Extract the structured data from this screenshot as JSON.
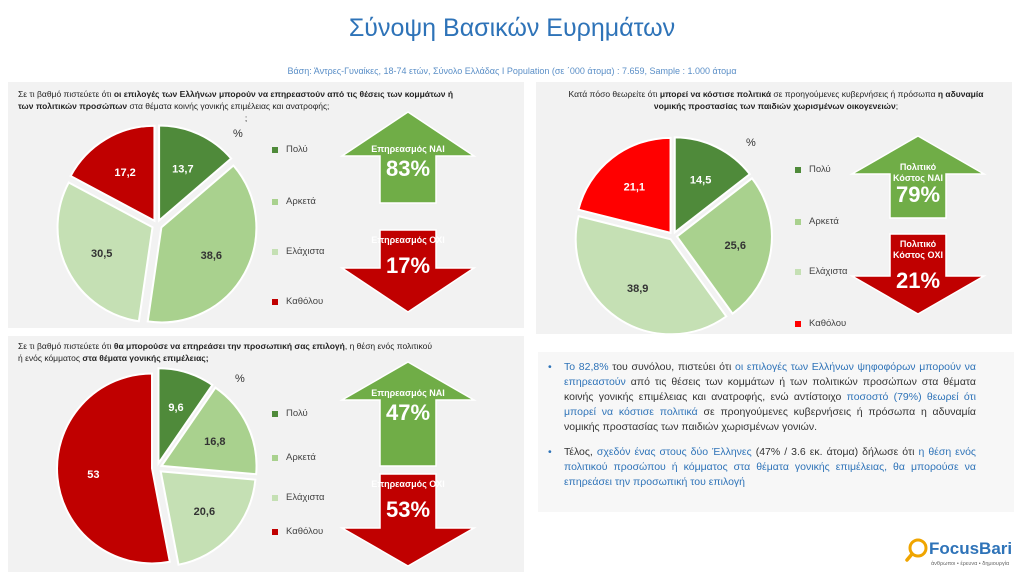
{
  "page": {
    "title": "Σύνοψη Βασικών Ευρημάτων",
    "subtitle": "Βάση: Άντρες-Γυναίκες, 18-74 ετών, Σύνολο Ελλάδας I Population (σε ΄000 άτομα) : 7.659, Sample : 1.000 άτομα"
  },
  "colors": {
    "polu": "#4f8a3a",
    "arketa": "#a9d18e",
    "elaxista": "#c5e0b4",
    "katholou": "#c00000",
    "red2": "#ff0000",
    "green_arrow": "#70ad47",
    "red_arrow": "#c00000",
    "blue": "#2e73b8"
  },
  "panel1": {
    "question_pre": "Σε τι βαθμό πιστεύετε ότι ",
    "question_bold": "οι επιλογές των Ελλήνων μπορούν να επηρεαστούν από τις θέσεις των κομμάτων ή των πολιτικών προσώπων",
    "question_post": " στα θέματα κοινής γονικής επιμέλειας και ανατροφής;",
    "question_tail": ";",
    "percent_sign": "%",
    "legend": [
      "Πολύ",
      "Αρκετά",
      "Ελάχιστα",
      "Καθόλου"
    ],
    "chart_data": {
      "type": "pie",
      "categories": [
        "Πολύ",
        "Αρκετά",
        "Ελάχιστα",
        "Καθόλου"
      ],
      "values": [
        13.7,
        38.6,
        30.5,
        17.2
      ],
      "labels": [
        "13,7",
        "38,6",
        "30,5",
        "17,2"
      ]
    },
    "arrow_up": {
      "label": "Επηρεασμός ΝΑΙ",
      "value": "83%"
    },
    "arrow_down": {
      "label": "Επηρεασμός ΟΧΙ",
      "value": "17%"
    }
  },
  "panel2": {
    "question_pre": "Κατά πόσο θεωρείτε ότι ",
    "question_bold1": "μπορεί να κόστισε πολιτικά",
    "question_mid": " σε προηγούμενες κυβερνήσεις ή πρόσωπα ",
    "question_bold2": "η αδυναμία νομικής προστασίας των παιδιών χωρισμένων οικογενειών",
    "question_post": ";",
    "percent_sign": "%",
    "legend": [
      "Πολύ",
      "Αρκετά",
      "Ελάχιστα",
      "Καθόλου"
    ],
    "chart_data": {
      "type": "pie",
      "categories": [
        "Πολύ",
        "Αρκετά",
        "Ελάχιστα",
        "Καθόλου"
      ],
      "values": [
        14.5,
        25.6,
        38.9,
        21.1
      ],
      "labels": [
        "14,5",
        "25,6",
        "38,9",
        "21,1"
      ]
    },
    "arrow_up": {
      "label": "Πολιτικό Κόστος ΝΑΙ",
      "value": "79%"
    },
    "arrow_down": {
      "label": "Πολιτικό Κόστος ΟΧΙ",
      "value": "21%"
    }
  },
  "panel3": {
    "question_pre": "Σε τι βαθμό πιστεύετε ότι ",
    "question_bold1": "θα μπορούσε να επηρεάσει την προσωπική σας επιλογή",
    "question_mid": ", η θέση ενός πολιτικού ή ενός κόμματος ",
    "question_bold2": "στα θέματα γονικής επιμέλειας;",
    "percent_sign": "%",
    "legend": [
      "Πολύ",
      "Αρκετά",
      "Ελάχιστα",
      "Καθόλου"
    ],
    "chart_data": {
      "type": "pie",
      "categories": [
        "Πολύ",
        "Αρκετά",
        "Ελάχιστα",
        "Καθόλου"
      ],
      "values": [
        9.6,
        16.8,
        20.6,
        53
      ],
      "labels": [
        "9,6",
        "16,8",
        "20,6",
        "53"
      ]
    },
    "arrow_up": {
      "label": "Επηρεασμός ΝΑΙ",
      "value": "47%"
    },
    "arrow_down": {
      "label": "Επηρεασμός ΟΧΙ",
      "value": "53%"
    }
  },
  "bullets": {
    "b1_a": "Το 82,8%",
    "b1_b": " του συνόλου, πιστεύει ότι ",
    "b1_c": "οι επιλογές των Ελλήνων ψηφοφόρων μπορούν να επηρεαστούν",
    "b1_d": " από τις θέσεις των κομμάτων ή των πολιτικών προσώπων στα θέματα κοινής γονικής επιμέλειας και ανατροφής",
    "b1_e": ", ενώ αντίστοιχο ",
    "b1_f": "ποσοστό (79%) θεωρεί ότι μπορεί να κόστισε πολιτικά",
    "b1_g": " σε προηγούμενες κυβερνήσεις ή πρόσωπα η αδυναμία νομικής προστασίας των παιδιών χωρισμένων γονιών.",
    "b2_a": "Τέλος, ",
    "b2_b": "σχεδόν ένας στους δύο Έλληνες",
    "b2_c": " (47% / 3.6 εκ. άτομα) δήλωσε ότι ",
    "b2_d": "η θέση ενός πολιτικού προσώπου ή κόμματος στα θέματα γονικής επιμέλειας, θα μπορούσε να επηρεάσει την προσωπική του επιλογή"
  },
  "logo": {
    "name": "FocusBari",
    "tagline": "άνθρωποι • έρευνα • δημιουργία",
    "icon": "magnifier-icon"
  }
}
